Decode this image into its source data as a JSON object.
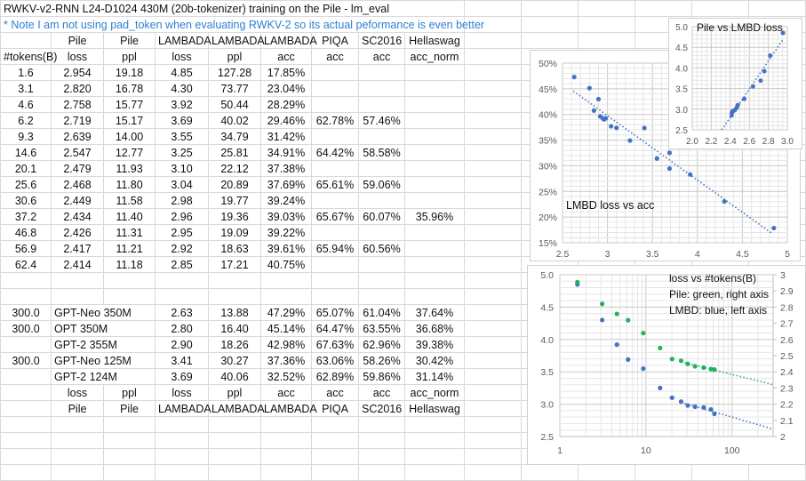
{
  "sheet": {
    "title": "RWKV-v2-RNN L24-D1024 430M (20b-tokenizer) training on the Pile - lm_eval",
    "note": "* Note I am not using pad_token when evaluating RWKV-2 so its actual peformance is even better",
    "header1": [
      "",
      "Pile",
      "Pile",
      "LAMBADA",
      "LAMBADA",
      "LAMBADA",
      "PIQA",
      "SC2016",
      "Hellaswag"
    ],
    "header2": [
      "#tokens(B)",
      "loss",
      "ppl",
      "loss",
      "ppl",
      "acc",
      "acc",
      "acc",
      "acc_norm"
    ],
    "rows": [
      [
        "1.6",
        "2.954",
        "19.18",
        "4.85",
        "127.28",
        "17.85%",
        "",
        "",
        ""
      ],
      [
        "3.1",
        "2.820",
        "16.78",
        "4.30",
        "73.77",
        "23.04%",
        "",
        "",
        ""
      ],
      [
        "4.6",
        "2.758",
        "15.77",
        "3.92",
        "50.44",
        "28.29%",
        "",
        "",
        ""
      ],
      [
        "6.2",
        "2.719",
        "15.17",
        "3.69",
        "40.02",
        "29.46%",
        "62.78%",
        "57.46%",
        ""
      ],
      [
        "9.3",
        "2.639",
        "14.00",
        "3.55",
        "34.79",
        "31.42%",
        "",
        "",
        ""
      ],
      [
        "14.6",
        "2.547",
        "12.77",
        "3.25",
        "25.81",
        "34.91%",
        "64.42%",
        "58.58%",
        ""
      ],
      [
        "20.1",
        "2.479",
        "11.93",
        "3.10",
        "22.12",
        "37.38%",
        "",
        "",
        ""
      ],
      [
        "25.6",
        "2.468",
        "11.80",
        "3.04",
        "20.89",
        "37.69%",
        "65.61%",
        "59.06%",
        ""
      ],
      [
        "30.6",
        "2.449",
        "11.58",
        "2.98",
        "19.77",
        "39.24%",
        "",
        "",
        ""
      ],
      [
        "37.2",
        "2.434",
        "11.40",
        "2.96",
        "19.36",
        "39.03%",
        "65.67%",
        "60.07%",
        "35.96%"
      ],
      [
        "46.8",
        "2.426",
        "11.31",
        "2.95",
        "19.09",
        "39.22%",
        "",
        "",
        ""
      ],
      [
        "56.9",
        "2.417",
        "11.21",
        "2.92",
        "18.63",
        "39.61%",
        "65.94%",
        "60.56%",
        ""
      ],
      [
        "62.4",
        "2.414",
        "11.18",
        "2.85",
        "17.21",
        "40.75%",
        "",
        "",
        ""
      ]
    ],
    "models": [
      {
        "tokens": "300.0",
        "name": "GPT-Neo 350M",
        "cells": [
          "2.63",
          "13.88",
          "47.29%",
          "65.07%",
          "61.04%",
          "37.64%"
        ]
      },
      {
        "tokens": "300.0",
        "name": "OPT 350M",
        "cells": [
          "2.80",
          "16.40",
          "45.14%",
          "64.47%",
          "63.55%",
          "36.68%"
        ]
      },
      {
        "tokens": "",
        "name": "GPT-2 355M",
        "cells": [
          "2.90",
          "18.26",
          "42.98%",
          "67.63%",
          "62.96%",
          "39.38%"
        ]
      },
      {
        "tokens": "300.0",
        "name": "GPT-Neo 125M",
        "cells": [
          "3.41",
          "30.27",
          "37.36%",
          "63.06%",
          "58.26%",
          "30.42%"
        ]
      },
      {
        "tokens": "",
        "name": "GPT-2 124M",
        "cells": [
          "3.69",
          "40.06",
          "32.52%",
          "62.89%",
          "59.86%",
          "31.14%"
        ]
      }
    ],
    "footer1": [
      "",
      "loss",
      "ppl",
      "loss",
      "ppl",
      "acc",
      "acc",
      "acc",
      "acc_norm"
    ],
    "footer2": [
      "",
      "Pile",
      "Pile",
      "LAMBADA",
      "LAMBADA",
      "LAMBADA",
      "PIQA",
      "SC2016",
      "Hellaswag"
    ]
  },
  "chart_data": [
    {
      "type": "scatter",
      "title": "LMBD loss vs acc",
      "xlim": [
        2.5,
        5
      ],
      "ylim": [
        15,
        50
      ],
      "y_format": "percent",
      "xticks": [
        "2.5",
        "3",
        "3.5",
        "4",
        "4.5",
        "5"
      ],
      "yticks": [
        "15%",
        "20%",
        "25%",
        "30%",
        "35%",
        "40%",
        "45%",
        "50%"
      ],
      "grid": true,
      "trendline": "linear",
      "color": "#4472c4",
      "x": [
        4.85,
        4.3,
        3.92,
        3.69,
        3.55,
        3.25,
        3.1,
        3.04,
        2.98,
        2.96,
        2.95,
        2.92,
        2.85,
        2.63,
        2.8,
        2.9,
        3.41,
        3.69
      ],
      "y": [
        17.85,
        23.04,
        28.29,
        29.46,
        31.42,
        34.91,
        37.38,
        37.69,
        39.24,
        39.03,
        39.22,
        39.61,
        40.75,
        47.29,
        45.14,
        42.98,
        37.36,
        32.52
      ]
    },
    {
      "type": "scatter",
      "title": "Pile vs LMBD loss",
      "xlim": [
        2.0,
        3.0
      ],
      "ylim": [
        2.5,
        5.0
      ],
      "xticks": [
        "2.0",
        "2.2",
        "2.4",
        "2.6",
        "2.8",
        "3.0"
      ],
      "yticks": [
        "2.5",
        "3.0",
        "3.5",
        "4.0",
        "4.5",
        "5.0"
      ],
      "grid": true,
      "trendline": "linear",
      "color": "#4472c4",
      "x": [
        2.954,
        2.82,
        2.758,
        2.719,
        2.639,
        2.547,
        2.479,
        2.468,
        2.449,
        2.434,
        2.426,
        2.417,
        2.414
      ],
      "y": [
        4.85,
        4.3,
        3.92,
        3.69,
        3.55,
        3.25,
        3.1,
        3.04,
        2.98,
        2.96,
        2.95,
        2.92,
        2.85
      ]
    },
    {
      "type": "scatter",
      "title": "loss vs #tokens(B)",
      "annotations": [
        "Pile: green, right axis",
        "LMBD: blue, left axis"
      ],
      "x_scale": "log",
      "xlim": [
        1,
        300
      ],
      "xticks": [
        "1",
        "10",
        "100"
      ],
      "ylim_left": [
        2.5,
        5.0
      ],
      "yticks_left": [
        "2.5",
        "3.0",
        "3.5",
        "4.0",
        "4.5",
        "5.0"
      ],
      "ylim_right": [
        2,
        3
      ],
      "yticks_right": [
        "2",
        "2.1",
        "2.2",
        "2.3",
        "2.4",
        "2.5",
        "2.6",
        "2.7",
        "2.8",
        "2.9",
        "3"
      ],
      "grid": true,
      "x": [
        1.6,
        3.1,
        4.6,
        6.2,
        9.3,
        14.6,
        20.1,
        25.6,
        30.6,
        37.2,
        46.8,
        56.9,
        62.4
      ],
      "series": [
        {
          "axis": "left",
          "color": "#4472c4",
          "trendline": "log",
          "values": [
            4.85,
            4.3,
            3.92,
            3.69,
            3.55,
            3.25,
            3.1,
            3.04,
            2.98,
            2.96,
            2.95,
            2.92,
            2.85
          ]
        },
        {
          "axis": "right",
          "color": "#1fb35a",
          "trendline": "log",
          "values": [
            2.954,
            2.82,
            2.758,
            2.719,
            2.639,
            2.547,
            2.479,
            2.468,
            2.449,
            2.434,
            2.426,
            2.417,
            2.414
          ]
        }
      ]
    }
  ]
}
